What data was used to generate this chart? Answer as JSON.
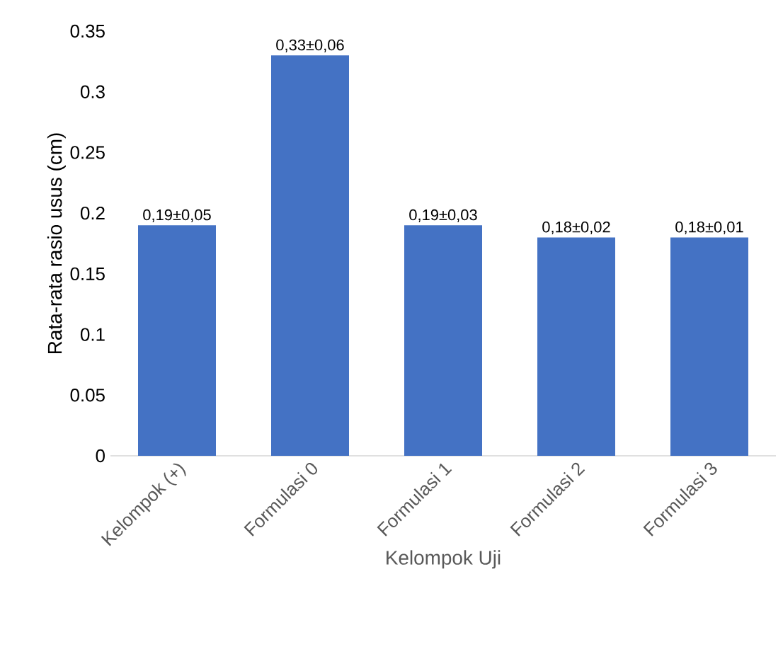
{
  "chart_data": {
    "type": "bar",
    "xlabel": "Kelompok Uji",
    "ylabel": "Rata-rata rasio usus (cm)",
    "categories": [
      "Kelompok (+)",
      "Formulasi 0",
      "Formulasi 1",
      "Formulasi 2",
      "Formulasi 3"
    ],
    "values": [
      0.19,
      0.33,
      0.19,
      0.18,
      0.18
    ],
    "value_labels": [
      "0,19±0,05",
      "0,33±0,06",
      "0,19±0,03",
      "0,18±0,02",
      "0,18±0,01"
    ],
    "color": "#4472c4",
    "ylim": [
      0,
      0.35
    ],
    "yticks": [
      0,
      0.05,
      0.1,
      0.15,
      0.2,
      0.25,
      0.3,
      0.35
    ]
  }
}
